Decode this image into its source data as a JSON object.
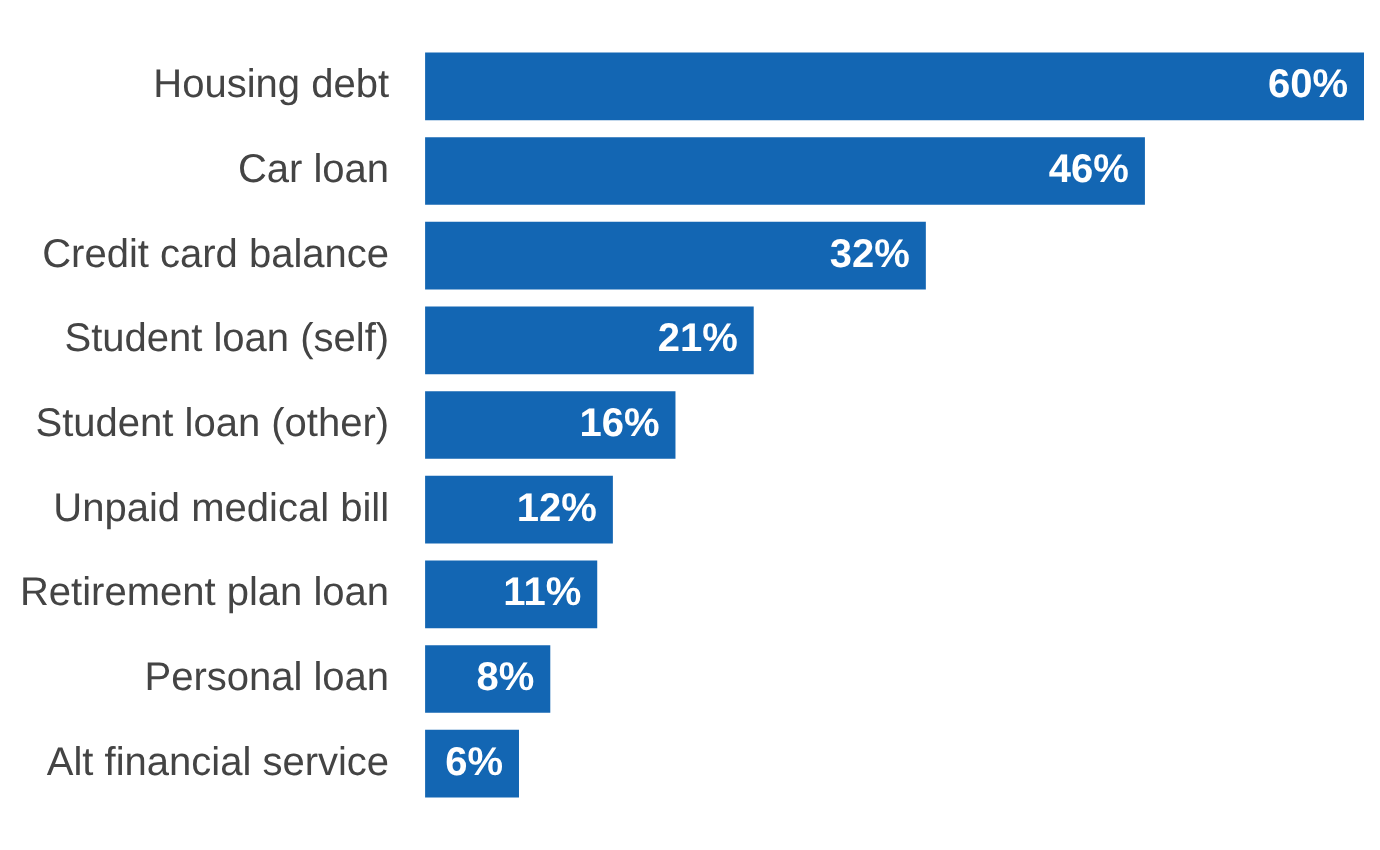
{
  "chart_data": {
    "type": "bar",
    "orientation": "horizontal",
    "categories": [
      "Housing debt",
      "Car loan",
      "Credit card balance",
      "Student loan (self)",
      "Student loan (other)",
      "Unpaid medical bill",
      "Retirement plan loan",
      "Personal loan",
      "Alt financial service"
    ],
    "values": [
      60,
      46,
      32,
      21,
      16,
      12,
      11,
      8,
      6
    ],
    "value_labels": [
      "60%",
      "46%",
      "32%",
      "21%",
      "16%",
      "12%",
      "11%",
      "8%",
      "6%"
    ],
    "color": "#1366b3",
    "tick_labels": "y"
  }
}
